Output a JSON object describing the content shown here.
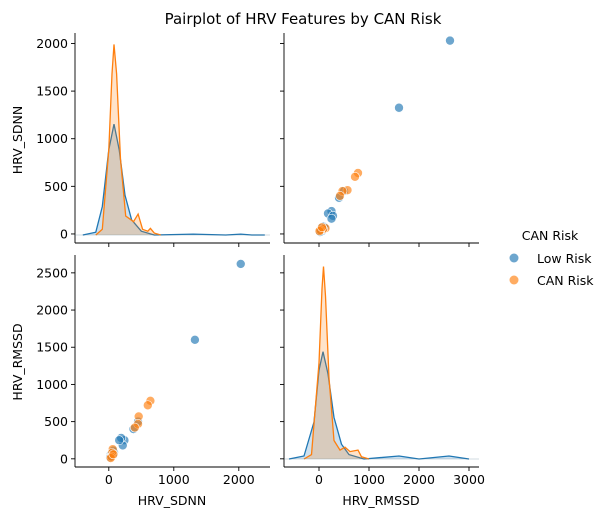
{
  "chart_data": {
    "type": "scatter",
    "title": "Pairplot of HRV Features by CAN Risk",
    "variables": [
      "HRV_SDNN",
      "HRV_RMSSD"
    ],
    "legend": {
      "title": "CAN Risk",
      "placement": "right",
      "entries": [
        "Low Risk",
        "CAN Risk"
      ]
    },
    "colors": {
      "Low Risk": "#1f77b4",
      "CAN Risk": "#ff7f0e"
    },
    "axes": {
      "HRV_SDNN": {
        "ticks": [
          0,
          1000,
          2000
        ],
        "lim": [
          -520,
          2480
        ]
      },
      "HRV_RMSSD": {
        "ticks": [
          0,
          1000,
          2000,
          3000
        ],
        "lim": [
          -700,
          3200
        ]
      },
      "HRV_SDNN_y": {
        "ticks": [
          0,
          500,
          1000,
          1500,
          2000
        ],
        "lim": [
          -95,
          2110
        ]
      },
      "HRV_RMSSD_y": {
        "ticks": [
          0,
          500,
          1000,
          1500,
          2000,
          2500
        ],
        "lim": [
          -110,
          2740
        ]
      }
    },
    "series": [
      {
        "name": "Low Risk",
        "points": [
          {
            "sdnn": 2030,
            "rmssd": 2620
          },
          {
            "sdnn": 1325,
            "rmssd": 1600
          },
          {
            "sdnn": 240,
            "rmssd": 250
          },
          {
            "sdnn": 215,
            "rmssd": 180
          },
          {
            "sdnn": 190,
            "rmssd": 280
          },
          {
            "sdnn": 160,
            "rmssd": 250
          },
          {
            "sdnn": 380,
            "rmssd": 400
          },
          {
            "sdnn": 450,
            "rmssd": 500
          },
          {
            "sdnn": 80,
            "rmssd": 90
          },
          {
            "sdnn": 60,
            "rmssd": 40
          },
          {
            "sdnn": 40,
            "rmssd": 30
          },
          {
            "sdnn": 30,
            "rmssd": 60
          },
          {
            "sdnn": 20,
            "rmssd": 20
          },
          {
            "sdnn": 70,
            "rmssd": 110
          }
        ]
      },
      {
        "name": "CAN Risk",
        "points": [
          {
            "sdnn": 640,
            "rmssd": 780
          },
          {
            "sdnn": 600,
            "rmssd": 720
          },
          {
            "sdnn": 460,
            "rmssd": 570
          },
          {
            "sdnn": 450,
            "rmssd": 470
          },
          {
            "sdnn": 400,
            "rmssd": 420
          },
          {
            "sdnn": 60,
            "rmssd": 130
          },
          {
            "sdnn": 50,
            "rmssd": 80
          },
          {
            "sdnn": 40,
            "rmssd": 30
          },
          {
            "sdnn": 30,
            "rmssd": 10
          },
          {
            "sdnn": 70,
            "rmssd": 60
          }
        ]
      }
    ],
    "kde": {
      "HRV_SDNN": {
        "Low Risk": [
          [
            -400,
            0
          ],
          [
            -200,
            30
          ],
          [
            -100,
            300
          ],
          [
            0,
            900
          ],
          [
            80,
            1170
          ],
          [
            160,
            900
          ],
          [
            250,
            420
          ],
          [
            350,
            160
          ],
          [
            500,
            40
          ],
          [
            700,
            0
          ],
          [
            1300,
            10
          ],
          [
            1800,
            0
          ],
          [
            2030,
            10
          ],
          [
            2200,
            0
          ],
          [
            2400,
            0
          ]
        ],
        "CAN Risk": [
          [
            -200,
            0
          ],
          [
            -100,
            60
          ],
          [
            0,
            900
          ],
          [
            50,
            1700
          ],
          [
            80,
            2010
          ],
          [
            120,
            1700
          ],
          [
            180,
            800
          ],
          [
            260,
            200
          ],
          [
            380,
            140
          ],
          [
            450,
            220
          ],
          [
            520,
            60
          ],
          [
            600,
            40
          ],
          [
            640,
            70
          ],
          [
            700,
            20
          ],
          [
            800,
            0
          ]
        ]
      },
      "HRV_RMSSD": {
        "Low Risk": [
          [
            -600,
            0
          ],
          [
            -300,
            40
          ],
          [
            -100,
            500
          ],
          [
            0,
            1200
          ],
          [
            80,
            1450
          ],
          [
            180,
            1150
          ],
          [
            300,
            560
          ],
          [
            450,
            200
          ],
          [
            600,
            60
          ],
          [
            900,
            0
          ],
          [
            1600,
            40
          ],
          [
            2000,
            0
          ],
          [
            2600,
            40
          ],
          [
            3000,
            0
          ]
        ],
        "CAN Risk": [
          [
            -300,
            0
          ],
          [
            -150,
            60
          ],
          [
            0,
            1300
          ],
          [
            60,
            2300
          ],
          [
            90,
            2600
          ],
          [
            130,
            2200
          ],
          [
            200,
            1100
          ],
          [
            300,
            250
          ],
          [
            420,
            120
          ],
          [
            520,
            160
          ],
          [
            620,
            100
          ],
          [
            780,
            120
          ],
          [
            850,
            30
          ],
          [
            1000,
            0
          ]
        ]
      }
    }
  }
}
